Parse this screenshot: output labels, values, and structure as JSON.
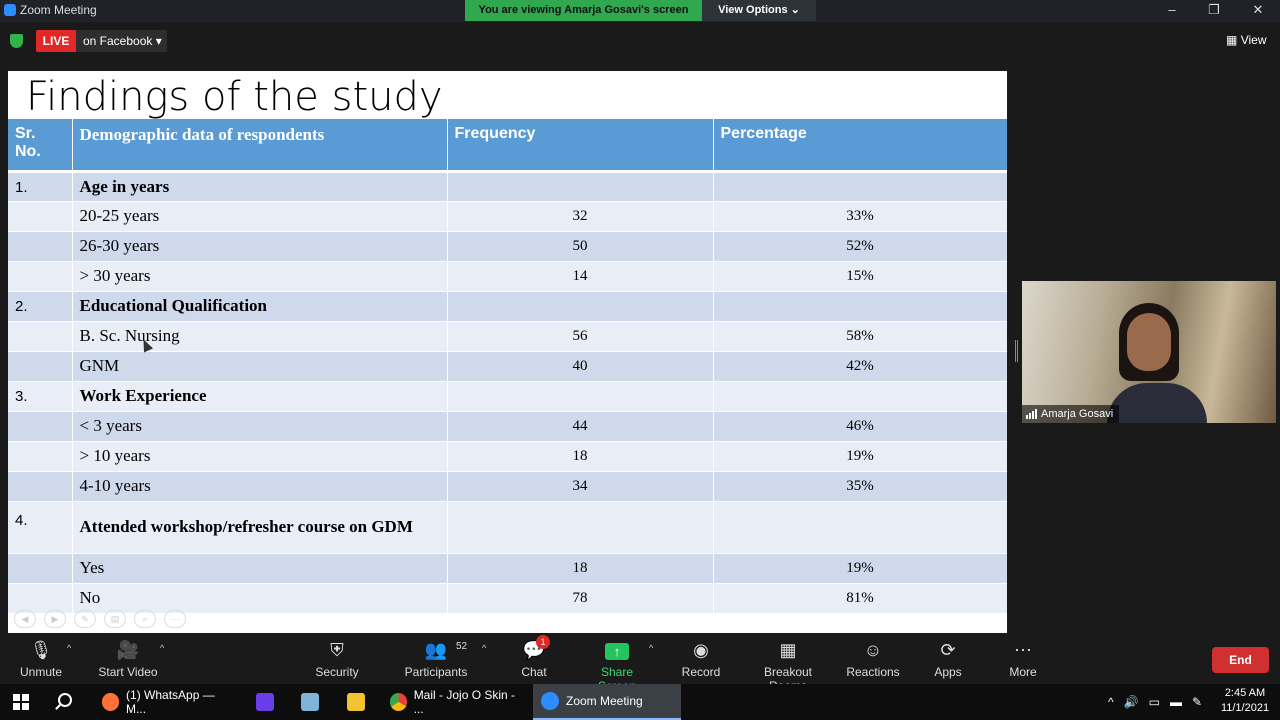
{
  "window": {
    "title": "Zoom Meeting",
    "viewing_banner": "You are viewing Amarja Gosavi's screen",
    "view_options": "View Options"
  },
  "topbar": {
    "live": "LIVE",
    "live_dest": "on Facebook",
    "view": "View"
  },
  "slide": {
    "title": "Findings of the study",
    "headers": [
      "Sr. No.",
      "Demographic data of respondents",
      "Frequency",
      "Percentage"
    ],
    "rows": [
      {
        "sr": "1.",
        "label": "Age in years",
        "freq": "",
        "pct": ""
      },
      {
        "sr": "",
        "label": "20-25 years",
        "freq": "32",
        "pct": "33%"
      },
      {
        "sr": "",
        "label": "26-30 years",
        "freq": "50",
        "pct": "52%"
      },
      {
        "sr": "",
        "label": "> 30 years",
        "freq": "14",
        "pct": "15%"
      },
      {
        "sr": "2.",
        "label": "Educational Qualification",
        "freq": "",
        "pct": ""
      },
      {
        "sr": "",
        "label": "B. Sc. Nursing",
        "freq": "56",
        "pct": "58%"
      },
      {
        "sr": "",
        "label": "GNM",
        "freq": "40",
        "pct": "42%"
      },
      {
        "sr": "3.",
        "label": "Work Experience",
        "freq": "",
        "pct": ""
      },
      {
        "sr": "",
        "label": "< 3 years",
        "freq": "44",
        "pct": "46%"
      },
      {
        "sr": "",
        "label": "> 10 years",
        "freq": "18",
        "pct": "19%"
      },
      {
        "sr": "",
        "label": "4-10 years",
        "freq": "34",
        "pct": "35%"
      },
      {
        "sr": "4.",
        "label": "Attended workshop/refresher course on GDM",
        "freq": "",
        "pct": ""
      },
      {
        "sr": "",
        "label": "Yes",
        "freq": "18",
        "pct": "19%"
      },
      {
        "sr": "",
        "label": "No",
        "freq": "78",
        "pct": "81%"
      }
    ]
  },
  "video": {
    "participant_name": "Amarja Gosavi"
  },
  "toolbar": {
    "unmute": "Unmute",
    "start_video": "Start Video",
    "security": "Security",
    "participants": "Participants",
    "participant_count": "52",
    "chat": "Chat",
    "chat_badge": "1",
    "share_screen": "Share Screen",
    "record": "Record",
    "breakout_rooms": "Breakout Rooms",
    "reactions": "Reactions",
    "apps": "Apps",
    "more": "More",
    "end": "End"
  },
  "taskbar": {
    "items": [
      "(1) WhatsApp — M...",
      "Mail - Jojo O Skin - ...",
      "Zoom Meeting"
    ],
    "time": "2:45 AM",
    "date": "11/1/2021"
  },
  "colors": {
    "accent_green": "#2fa84f",
    "live_red": "#e02828",
    "table_header": "#5b9bd5",
    "end_red": "#d0302f"
  }
}
